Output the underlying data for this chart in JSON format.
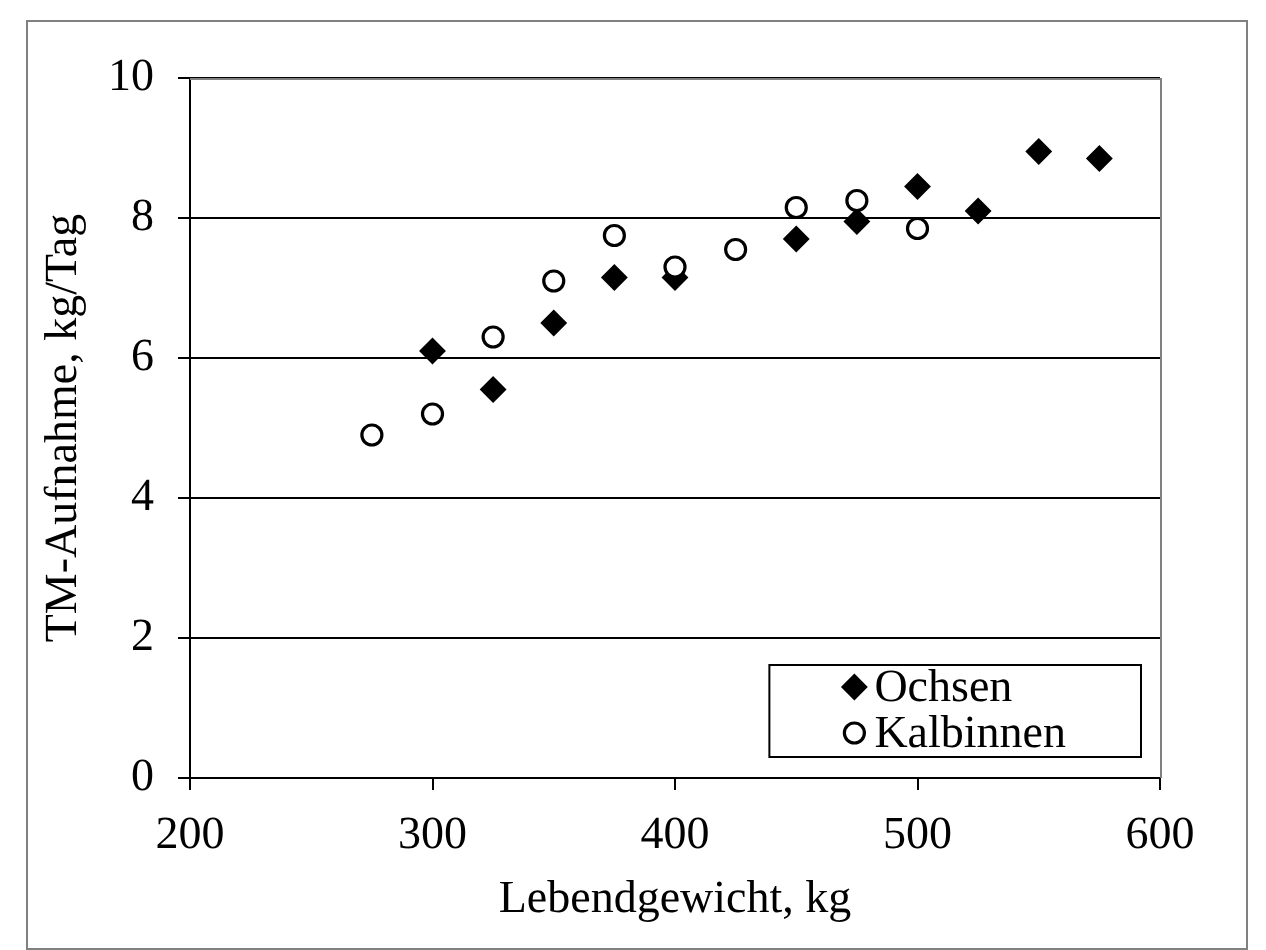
{
  "chart_data": {
    "type": "scatter",
    "xlabel": "Lebendgewicht, kg",
    "ylabel": "TM-Aufnahme, kg/Tag",
    "xlim": [
      200,
      600
    ],
    "xticks": [
      200,
      300,
      400,
      500,
      600
    ],
    "ylim": [
      0,
      10
    ],
    "yticks": [
      0,
      2,
      4,
      6,
      8,
      10
    ],
    "grid": "y",
    "legend": "bottom right",
    "series": [
      {
        "name": "Ochsen",
        "color": "#000000",
        "marker": "diamond",
        "x": [
          300,
          325,
          350,
          375,
          400,
          425,
          450,
          475,
          500,
          525,
          550,
          575
        ],
        "values": [
          6.1,
          5.55,
          6.5,
          7.15,
          7.15,
          null,
          7.7,
          7.95,
          8.45,
          8.1,
          8.95,
          8.85
        ]
      },
      {
        "name": "Kalbinnen",
        "color": "#000000",
        "marker": "circle",
        "x": [
          275,
          300,
          325,
          350,
          375,
          400,
          425,
          450,
          475,
          500
        ],
        "values": [
          4.9,
          5.2,
          6.3,
          7.1,
          7.75,
          7.3,
          7.55,
          8.15,
          8.25,
          7.85
        ]
      }
    ]
  }
}
